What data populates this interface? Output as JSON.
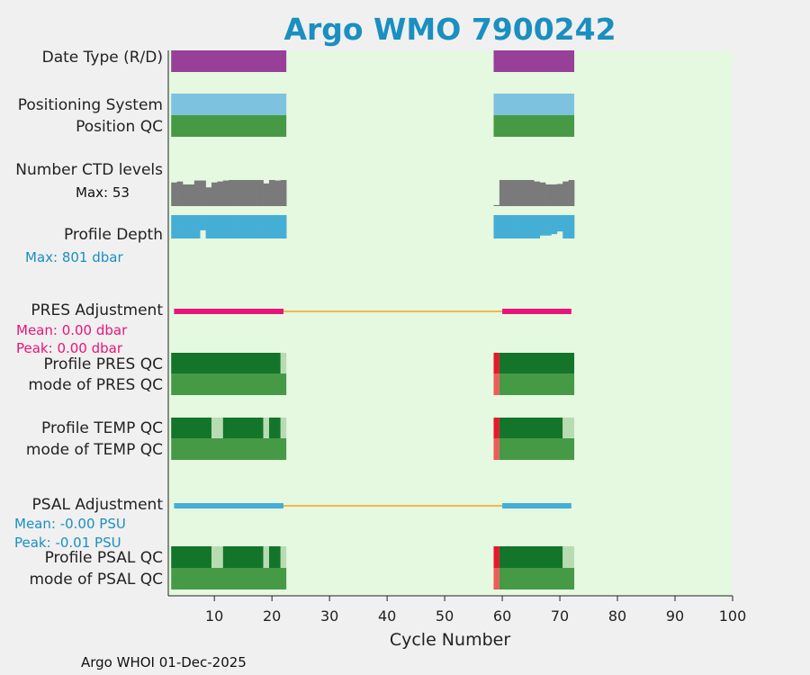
{
  "chart_data": {
    "type": "table",
    "title": "Argo WMO 7900242",
    "xlabel": "Cycle Number",
    "xlim": [
      2,
      100
    ],
    "xticks": [
      10,
      20,
      30,
      40,
      50,
      60,
      70,
      80,
      90,
      100
    ],
    "footer": "Argo WHOI 01-Dec-2025",
    "colors": {
      "plot_bg": "#e5f8e0",
      "purple": "#973f99",
      "lightblue": "#7dc3e0",
      "green": "#469a46",
      "darkgreen": "#137529",
      "palegreen": "#b8dcb2",
      "gray": "#7a7a7a",
      "blue": "#45aed5",
      "pink": "#e8147a",
      "orange": "#f2b84a",
      "red": "#e8182b",
      "lightred": "#ef5a5a"
    },
    "rows": [
      {
        "label": "Date Type (R/D)",
        "kind": "blocks",
        "segments": [
          {
            "x0": 2.5,
            "x1": 22.5,
            "color": "purple"
          },
          {
            "x0": 58.5,
            "x1": 72.5,
            "color": "purple"
          }
        ]
      },
      {
        "label": "Positioning System",
        "kind": "blocks",
        "segments": [
          {
            "x0": 2.5,
            "x1": 22.5,
            "color": "lightblue"
          },
          {
            "x0": 58.5,
            "x1": 72.5,
            "color": "lightblue"
          }
        ]
      },
      {
        "label": "Position QC",
        "kind": "blocks",
        "segments": [
          {
            "x0": 2.5,
            "x1": 22.5,
            "color": "green"
          },
          {
            "x0": 58.5,
            "x1": 72.5,
            "color": "green"
          }
        ]
      },
      {
        "label": "Number CTD levels",
        "kind": "bars_up",
        "color": "gray",
        "max_label": "Max: 53",
        "max": 53,
        "cycles": [
          3,
          4,
          5,
          6,
          7,
          8,
          9,
          10,
          11,
          12,
          13,
          14,
          15,
          16,
          17,
          18,
          19,
          20,
          21,
          22,
          59,
          60,
          61,
          62,
          63,
          64,
          65,
          66,
          67,
          68,
          69,
          70,
          71,
          72
        ],
        "values": [
          48,
          50,
          44,
          44,
          52,
          52,
          38,
          48,
          50,
          52,
          53,
          53,
          53,
          53,
          53,
          53,
          46,
          53,
          52,
          53,
          2,
          53,
          53,
          53,
          53,
          53,
          53,
          50,
          48,
          44,
          44,
          45,
          50,
          53
        ]
      },
      {
        "label": "Profile Depth",
        "kind": "bars_down",
        "color": "blue",
        "max_label": "Max:  801 dbar",
        "max": 801,
        "cycles": [
          3,
          4,
          5,
          6,
          7,
          8,
          9,
          10,
          11,
          12,
          13,
          14,
          15,
          16,
          17,
          18,
          19,
          20,
          21,
          22,
          59,
          60,
          61,
          62,
          63,
          64,
          65,
          66,
          67,
          68,
          69,
          70,
          71,
          72
        ],
        "values": [
          801,
          801,
          801,
          801,
          801,
          520,
          801,
          801,
          801,
          801,
          801,
          801,
          801,
          801,
          801,
          801,
          801,
          801,
          801,
          801,
          801,
          801,
          801,
          801,
          801,
          801,
          801,
          801,
          700,
          700,
          650,
          560,
          801,
          801
        ]
      },
      {
        "label": "PRES Adjustment",
        "kind": "line",
        "color": "pink",
        "gap_color": "orange",
        "segments": [
          [
            3,
            22
          ],
          [
            60,
            72
          ]
        ],
        "gap": [
          22,
          60
        ],
        "annotations": [
          "Mean: 0.00 dbar",
          "Peak: 0.00 dbar"
        ]
      },
      {
        "label": "Profile PRES QC",
        "kind": "blocks",
        "segments": [
          {
            "x0": 2.5,
            "x1": 21.5,
            "color": "darkgreen"
          },
          {
            "x0": 21.5,
            "x1": 22.5,
            "color": "palegreen"
          },
          {
            "x0": 58.5,
            "x1": 59.5,
            "color": "red"
          },
          {
            "x0": 59.5,
            "x1": 72.5,
            "color": "darkgreen"
          }
        ]
      },
      {
        "label": "mode of PRES QC",
        "kind": "blocks",
        "segments": [
          {
            "x0": 2.5,
            "x1": 22.5,
            "color": "green"
          },
          {
            "x0": 58.5,
            "x1": 59.5,
            "color": "lightred"
          },
          {
            "x0": 59.5,
            "x1": 72.5,
            "color": "green"
          }
        ]
      },
      {
        "label": "Profile TEMP QC",
        "kind": "blocks",
        "segments": [
          {
            "x0": 2.5,
            "x1": 9.5,
            "color": "darkgreen"
          },
          {
            "x0": 9.5,
            "x1": 11.5,
            "color": "palegreen"
          },
          {
            "x0": 11.5,
            "x1": 18.5,
            "color": "darkgreen"
          },
          {
            "x0": 18.5,
            "x1": 19.5,
            "color": "palegreen"
          },
          {
            "x0": 19.5,
            "x1": 21.5,
            "color": "darkgreen"
          },
          {
            "x0": 21.5,
            "x1": 22.5,
            "color": "palegreen"
          },
          {
            "x0": 58.5,
            "x1": 59.5,
            "color": "red"
          },
          {
            "x0": 59.5,
            "x1": 70.5,
            "color": "darkgreen"
          },
          {
            "x0": 70.5,
            "x1": 72.5,
            "color": "palegreen"
          }
        ]
      },
      {
        "label": "mode of TEMP QC",
        "kind": "blocks",
        "segments": [
          {
            "x0": 2.5,
            "x1": 22.5,
            "color": "green"
          },
          {
            "x0": 58.5,
            "x1": 59.5,
            "color": "lightred"
          },
          {
            "x0": 59.5,
            "x1": 72.5,
            "color": "green"
          }
        ]
      },
      {
        "label": "PSAL Adjustment",
        "kind": "line",
        "color": "blue",
        "gap_color": "orange",
        "segments": [
          [
            3,
            22
          ],
          [
            60,
            72
          ]
        ],
        "gap": [
          22,
          60
        ],
        "annotations": [
          "Mean: -0.00 PSU",
          "Peak: -0.01 PSU"
        ]
      },
      {
        "label": "Profile PSAL QC",
        "kind": "blocks",
        "segments": [
          {
            "x0": 2.5,
            "x1": 9.5,
            "color": "darkgreen"
          },
          {
            "x0": 9.5,
            "x1": 11.5,
            "color": "palegreen"
          },
          {
            "x0": 11.5,
            "x1": 18.5,
            "color": "darkgreen"
          },
          {
            "x0": 18.5,
            "x1": 19.5,
            "color": "palegreen"
          },
          {
            "x0": 19.5,
            "x1": 21.5,
            "color": "darkgreen"
          },
          {
            "x0": 21.5,
            "x1": 22.5,
            "color": "palegreen"
          },
          {
            "x0": 58.5,
            "x1": 59.5,
            "color": "red"
          },
          {
            "x0": 59.5,
            "x1": 70.5,
            "color": "darkgreen"
          },
          {
            "x0": 70.5,
            "x1": 72.5,
            "color": "palegreen"
          }
        ]
      },
      {
        "label": "mode of PSAL QC",
        "kind": "blocks",
        "segments": [
          {
            "x0": 2.5,
            "x1": 22.5,
            "color": "green"
          },
          {
            "x0": 58.5,
            "x1": 59.5,
            "color": "lightred"
          },
          {
            "x0": 59.5,
            "x1": 72.5,
            "color": "green"
          }
        ]
      }
    ]
  }
}
